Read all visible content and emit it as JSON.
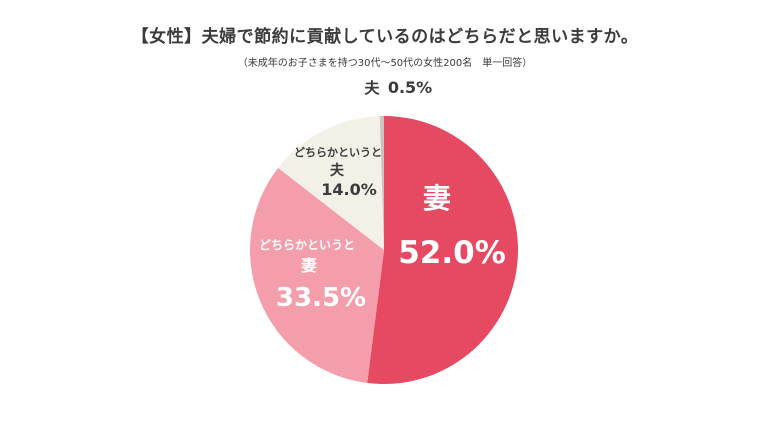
{
  "title": "【女性】夫婦で節約に貢献しているのはどちらだと思いますか。",
  "subtitle": "（未成年のお子さまを持つ30代〜50代の女性200名　単一回答）",
  "colors": {
    "wife": "#e64a63",
    "rather_wife": "#f59eab",
    "rather_husband": "#f3f0e8",
    "husband": "#c9c6c0"
  },
  "chart_data": {
    "type": "pie",
    "title": "【女性】夫婦で節約に貢献しているのはどちらだと思いますか。",
    "subtitle": "（未成年のお子さまを持つ30代〜50代の女性200名　単一回答）",
    "slices": [
      {
        "label": "妻",
        "prefix": "",
        "value": 52.0,
        "value_label": "52.0%"
      },
      {
        "label": "妻",
        "prefix": "どちらかというと",
        "value": 33.5,
        "value_label": "33.5%"
      },
      {
        "label": "夫",
        "prefix": "どちらかというと",
        "value": 14.0,
        "value_label": "14.0%"
      },
      {
        "label": "夫",
        "prefix": "",
        "value": 0.5,
        "value_label": "0.5%"
      }
    ]
  }
}
